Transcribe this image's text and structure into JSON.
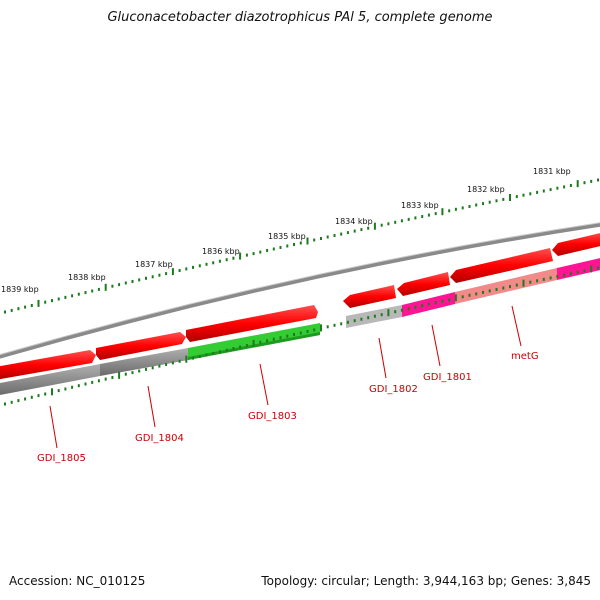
{
  "title": "Gluconacetobacter diazotrophicus PAl 5, complete genome",
  "footer": {
    "accession": "Accession: NC_010125",
    "topology": "Topology: circular; Length: 3,944,163 bp; Genes: 3,845"
  },
  "kbp_ticks": [
    {
      "label": "1831 kbp",
      "kb": 1831
    },
    {
      "label": "1832 kbp",
      "kb": 1832
    },
    {
      "label": "1833 kbp",
      "kb": 1833
    },
    {
      "label": "1834 kbp",
      "kb": 1834
    },
    {
      "label": "1835 kbp",
      "kb": 1835
    },
    {
      "label": "1836 kbp",
      "kb": 1836
    },
    {
      "label": "1837 kbp",
      "kb": 1837
    },
    {
      "label": "1838 kbp",
      "kb": 1838
    },
    {
      "label": "1839 kbp",
      "kb": 1839
    }
  ],
  "genes": [
    {
      "label": "metG",
      "strand": "forward",
      "color": "#ff0000",
      "subtrack_color": "#f08080"
    },
    {
      "label": "GDI_1801",
      "strand": "forward",
      "color": "#ff0000",
      "subtrack_color": "#ff1493"
    },
    {
      "label": "GDI_1802",
      "strand": "forward",
      "color": "#ff0000",
      "subtrack_color": "#b0b0b0"
    },
    {
      "label": "GDI_1803",
      "strand": "forward",
      "color": "#ff0000",
      "subtrack_color": "#2ecc2e"
    },
    {
      "label": "GDI_1804",
      "strand": "forward",
      "color": "#ff0000",
      "subtrack_color": "#555555"
    },
    {
      "label": "GDI_1805",
      "strand": "forward",
      "color": "#ff0000",
      "subtrack_color": "#555555"
    }
  ],
  "colors": {
    "backbone": "#808080",
    "tick": "#1e7a1e",
    "label": "#cc0000"
  }
}
